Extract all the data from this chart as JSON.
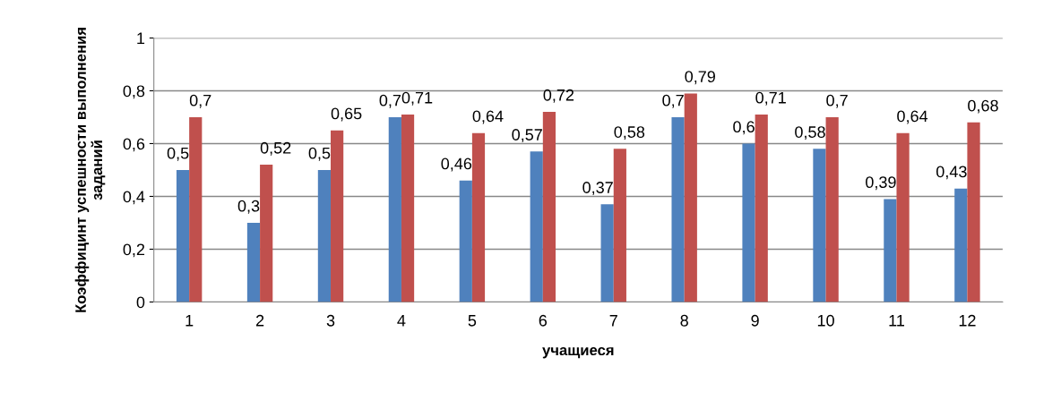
{
  "chart_data": {
    "type": "bar",
    "xlabel": "учащиеся",
    "ylabel": "Коэффицинт успешности выполнения заданий",
    "categories": [
      "1",
      "2",
      "3",
      "4",
      "5",
      "6",
      "7",
      "8",
      "9",
      "10",
      "11",
      "12"
    ],
    "series": [
      {
        "color": "#4f81bd",
        "values": [
          0.5,
          0.3,
          0.5,
          0.7,
          0.46,
          0.57,
          0.37,
          0.7,
          0.6,
          0.58,
          0.39,
          0.43
        ],
        "value_labels": [
          "0,5",
          "0,3",
          "0,5",
          "0,7",
          "0,46",
          "0,57",
          "0,37",
          "0,7",
          "0,6",
          "0,58",
          "0,39",
          "0,43"
        ]
      },
      {
        "color": "#c0504d",
        "values": [
          0.7,
          0.52,
          0.65,
          0.71,
          0.64,
          0.72,
          0.58,
          0.79,
          0.71,
          0.7,
          0.64,
          0.68
        ],
        "value_labels": [
          "0,7",
          "0,52",
          "0,65",
          "0,71",
          "0,64",
          "0,72",
          "0,58",
          "0,79",
          "0,71",
          "0,7",
          "0,64",
          "0,68"
        ]
      }
    ],
    "ylim": [
      0,
      1
    ],
    "yticks": [
      {
        "value": 0,
        "label": "0"
      },
      {
        "value": 0.2,
        "label": "0,2"
      },
      {
        "value": 0.4,
        "label": "0,4"
      },
      {
        "value": 0.6,
        "label": "0,6"
      },
      {
        "value": 0.8,
        "label": "0,8"
      },
      {
        "value": 1,
        "label": "1"
      }
    ],
    "grid": "y"
  }
}
